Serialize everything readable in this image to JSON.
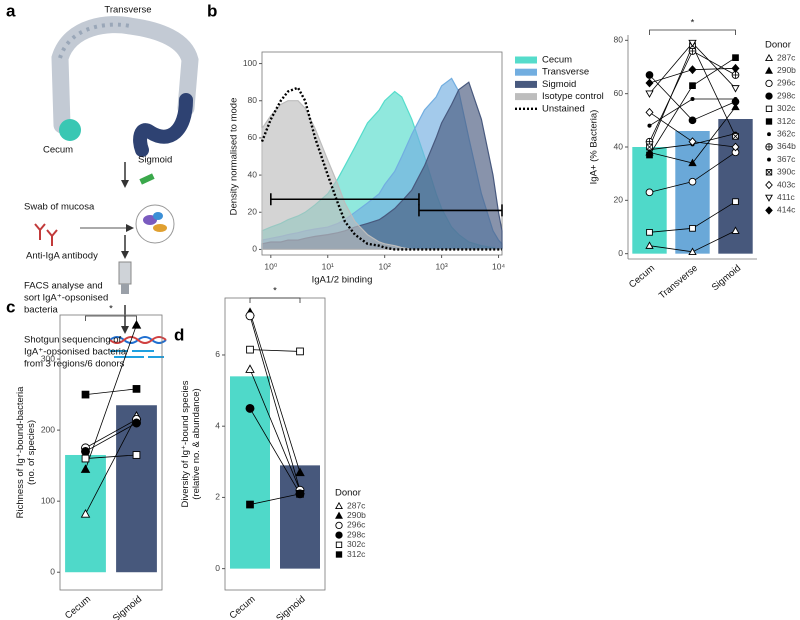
{
  "panel_labels": [
    "a",
    "b",
    "c",
    "d"
  ],
  "diagram": {
    "colon_labels": [
      "Transverse",
      "Cecum",
      "Sigmoid"
    ],
    "steps": [
      [
        "Swab of mucosa"
      ],
      [
        "Anti-IgA antibody"
      ],
      [
        "FACS analyse and",
        "sort IgA⁺-opsonised",
        "bacteria"
      ],
      [
        "Shotgun sequencing of",
        "IgA⁺-opsonised bacteria",
        "from 3 regions/6 donors"
      ]
    ]
  },
  "chart_data": [
    {
      "type": "area",
      "xscale": "log",
      "xlabel": "IgA1/2 binding",
      "ylabel": "Density normalised to mode",
      "x": [
        0.7,
        1,
        1.5,
        2,
        3,
        4,
        6,
        10,
        15,
        20,
        30,
        50,
        80,
        100,
        150,
        200,
        300,
        500,
        800,
        1000,
        1500,
        2000,
        3000,
        5000,
        8000,
        10000,
        11500
      ],
      "xlim": [
        0.7,
        11500
      ],
      "xticks": [
        {
          "value": 1,
          "label": "10⁰"
        },
        {
          "value": 10,
          "label": "10¹"
        },
        {
          "value": 100,
          "label": "10²"
        },
        {
          "value": 1000,
          "label": "10³"
        },
        {
          "value": 10000,
          "label": "10⁴"
        }
      ],
      "ylim": [
        -3,
        103
      ],
      "yticks": [
        0,
        20,
        40,
        60,
        80,
        100
      ],
      "series": [
        {
          "name": "Cecum",
          "color": "#55dccb",
          "fill": true,
          "line_style": "solid",
          "values": [
            10,
            12,
            14,
            16,
            18,
            20,
            24,
            30,
            38,
            45,
            55,
            68,
            75,
            80,
            85,
            82,
            70,
            50,
            30,
            22,
            12,
            8,
            4,
            2,
            1,
            0,
            0
          ]
        },
        {
          "name": "Transverse",
          "color": "#72aee0",
          "fill": true,
          "line_style": "solid",
          "values": [
            5,
            6,
            7,
            8,
            9,
            10,
            11,
            12,
            14,
            16,
            20,
            25,
            30,
            35,
            42,
            50,
            62,
            75,
            82,
            88,
            92,
            85,
            60,
            30,
            10,
            5,
            3
          ]
        },
        {
          "name": "Sigmoid",
          "color": "#48597e",
          "fill": true,
          "line_style": "solid",
          "values": [
            3,
            4,
            4,
            5,
            5,
            6,
            7,
            8,
            9,
            10,
            12,
            14,
            16,
            18,
            22,
            26,
            32,
            45,
            60,
            68,
            78,
            86,
            90,
            70,
            40,
            20,
            10
          ]
        },
        {
          "name": "Isotype control",
          "color": "#bdbdbd",
          "fill": true,
          "line_style": "solid",
          "values": [
            65,
            72,
            78,
            80,
            80,
            76,
            65,
            48,
            35,
            25,
            15,
            8,
            4,
            3,
            2,
            1,
            0,
            0,
            0,
            0,
            0,
            0,
            0,
            0,
            0,
            0,
            0
          ]
        },
        {
          "name": "Unstained",
          "color": "#000000",
          "fill": false,
          "line_style": "dotted",
          "values": [
            58,
            70,
            80,
            85,
            87,
            80,
            60,
            40,
            25,
            15,
            8,
            3,
            2,
            1,
            0,
            0,
            0,
            0,
            0,
            0,
            0,
            0,
            0,
            0,
            0,
            0,
            0
          ]
        }
      ],
      "gates": [
        {
          "x": [
            1,
            400
          ],
          "y": 27
        },
        {
          "x": [
            400,
            11500
          ],
          "y": 21
        }
      ]
    },
    {
      "type": "bar",
      "ylabel": "IgA+ (% Bacteria)",
      "annotation": "*",
      "legend_title": "Donor",
      "categories": [
        "Cecum",
        "Transverse",
        "Sigmoid"
      ],
      "values": [
        40,
        46,
        50.5
      ],
      "colors": [
        "#4fd9c9",
        "#6aa8d8",
        "#47587c"
      ],
      "ylim": [
        -2,
        82
      ],
      "yticks": [
        0,
        20,
        40,
        60,
        80
      ],
      "series": [
        {
          "name": "287c",
          "marker": "triangle-open",
          "values": [
            3,
            0.7,
            8.6
          ]
        },
        {
          "name": "290b",
          "marker": "triangle",
          "values": [
            38,
            34,
            55
          ]
        },
        {
          "name": "296c",
          "marker": "circle-open",
          "values": [
            23,
            27,
            38
          ]
        },
        {
          "name": "298c",
          "marker": "circle",
          "values": [
            67,
            50,
            57
          ]
        },
        {
          "name": "302c",
          "marker": "square-open",
          "values": [
            8,
            9.5,
            19.5
          ]
        },
        {
          "name": "312c",
          "marker": "square",
          "values": [
            37,
            63,
            73.5
          ]
        },
        {
          "name": "362c",
          "marker": "dot",
          "values": [
            48,
            58,
            58
          ]
        },
        {
          "name": "364b",
          "marker": "circle-plus",
          "values": [
            42,
            76,
            67
          ]
        },
        {
          "name": "367c",
          "marker": "dot",
          "values": [
            39,
            41,
            45
          ]
        },
        {
          "name": "390c",
          "marker": "square-cross",
          "values": [
            40,
            78,
            44
          ]
        },
        {
          "name": "403c",
          "marker": "diamond-open",
          "values": [
            53,
            42,
            40
          ]
        },
        {
          "name": "411c",
          "marker": "triangle-down-open",
          "values": [
            60,
            79,
            62
          ]
        },
        {
          "name": "414c",
          "marker": "diamond",
          "values": [
            64,
            69,
            69.5
          ]
        }
      ]
    },
    {
      "type": "bar",
      "ylabel": [
        "Richness of Ig⁺-bound-bacteria",
        "(no. of species)"
      ],
      "annotation": "*",
      "categories": [
        "Cecum",
        "Sigmoid"
      ],
      "values": [
        165,
        235
      ],
      "colors": [
        "#4fd9c9",
        "#47587c"
      ],
      "ylim": [
        -25,
        362
      ],
      "yticks": [
        0,
        100,
        200,
        300
      ],
      "series": [
        {
          "name": "287c",
          "marker": "triangle-open",
          "values": [
            82,
            220
          ]
        },
        {
          "name": "290b",
          "marker": "triangle",
          "values": [
            145,
            348
          ]
        },
        {
          "name": "296c",
          "marker": "circle-open",
          "values": [
            175,
            215
          ]
        },
        {
          "name": "298c",
          "marker": "circle",
          "values": [
            170,
            210
          ]
        },
        {
          "name": "302c",
          "marker": "square-open",
          "values": [
            160,
            165
          ]
        },
        {
          "name": "312c",
          "marker": "square",
          "values": [
            250,
            258
          ]
        }
      ]
    },
    {
      "type": "bar",
      "ylabel": [
        "Diversity of Ig⁺-bound species",
        "(relative no. & abundance)"
      ],
      "annotation": "*",
      "legend_title": "Donor",
      "categories": [
        "Cecum",
        "Sigmoid"
      ],
      "values": [
        5.4,
        2.9
      ],
      "colors": [
        "#4fd9c9",
        "#47587c"
      ],
      "ylim": [
        -0.6,
        7.6
      ],
      "yticks": [
        0,
        2,
        4,
        6
      ],
      "series": [
        {
          "name": "287c",
          "marker": "triangle-open",
          "values": [
            5.6,
            2.2
          ]
        },
        {
          "name": "290b",
          "marker": "triangle",
          "values": [
            7.2,
            2.7
          ]
        },
        {
          "name": "296c",
          "marker": "circle-open",
          "values": [
            7.1,
            2.2
          ]
        },
        {
          "name": "298c",
          "marker": "circle",
          "values": [
            4.5,
            2.1
          ]
        },
        {
          "name": "302c",
          "marker": "square-open",
          "values": [
            6.15,
            6.1
          ]
        },
        {
          "name": "312c",
          "marker": "square",
          "values": [
            1.8,
            2.1
          ]
        }
      ]
    }
  ]
}
